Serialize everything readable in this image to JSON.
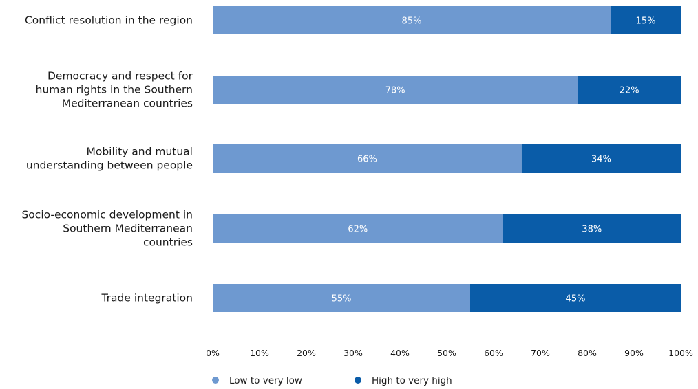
{
  "chart_data": {
    "type": "bar",
    "orientation": "horizontal",
    "stacked": true,
    "categories": [
      [
        "Conflict resolution in the region"
      ],
      [
        "Democracy and respect for",
        "human rights in the Southern",
        "Mediterranean countries"
      ],
      [
        "Mobility and mutual",
        "understanding between people"
      ],
      [
        "Socio-economic development in",
        "Southern Mediterranean",
        "countries"
      ],
      [
        "Trade integration"
      ]
    ],
    "series": [
      {
        "name": "Low to very low",
        "color": "#6e99d0",
        "values": [
          85,
          78,
          66,
          62,
          55
        ],
        "labels": [
          "85%",
          "78%",
          "66%",
          "62%",
          "55%"
        ]
      },
      {
        "name": "High to very high",
        "color": "#0a5ca8",
        "values": [
          15,
          22,
          34,
          38,
          45
        ],
        "labels": [
          "15%",
          "22%",
          "34%",
          "38%",
          "45%"
        ]
      }
    ],
    "xlim": [
      0,
      100
    ],
    "xticks": [
      "0%",
      "10%",
      "20%",
      "30%",
      "40%",
      "50%",
      "60%",
      "70%",
      "80%",
      "90%",
      "100%"
    ],
    "grid": false,
    "legend_position": "bottom-left"
  }
}
